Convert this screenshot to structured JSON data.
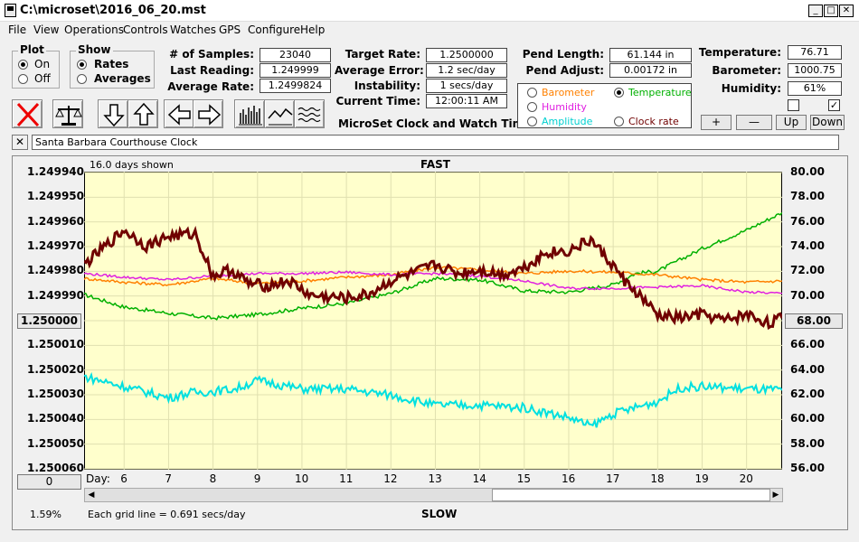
{
  "window": {
    "title": "C:\\microset\\2016_06_20.mst"
  },
  "menu": [
    "File",
    "View",
    "Operations",
    "Controls",
    "Watches",
    "GPS",
    "Configure",
    "Help"
  ],
  "plot": {
    "title": "Plot",
    "on": "On",
    "off": "Off"
  },
  "show": {
    "title": "Show",
    "rates": "Rates",
    "averages": "Averages"
  },
  "stats": {
    "samples_label": "# of Samples:",
    "samples": "23040",
    "last_label": "Last Reading:",
    "last": "1.249999",
    "avg_label": "Average Rate:",
    "avg": "1.2499824",
    "target_label": "Target Rate:",
    "target": "1.2500000",
    "averr_label": "Average Error:",
    "averr": "1.2 sec/day",
    "instab_label": "Instability:",
    "instab": "1 secs/day",
    "time_label": "Current Time:",
    "time": "12:00:11 AM",
    "pendlen_label": "Pend Length:",
    "pendlen": "61.144 in",
    "pendadj_label": "Pend Adjust:",
    "pendadj": "0.00172 in",
    "temp_label": "Temperature:",
    "temp": "76.71",
    "baro_label": "Barometer:",
    "baro": "1000.75",
    "hum_label": "Humidity:",
    "hum": "61%"
  },
  "subtitle": "MicroSet Clock and Watch Timer",
  "legend": {
    "barometer": "Barometer",
    "temperature": "Temperature",
    "humidity": "Humidity",
    "amplitude": "Amplitude",
    "clockrate": "Clock rate"
  },
  "smallbuttons": {
    "plus": "+",
    "minus": "—",
    "up": "Up",
    "down": "Down"
  },
  "clockname": "Santa Barbara Courthouse Clock",
  "colors": {
    "panel_bg": "#ffffcc",
    "barometer": "#ff8000",
    "temperature": "#00b000",
    "humidity": "#e020e0",
    "amplitude": "#00e0e0",
    "clockrate": "#700000"
  },
  "chart_data": {
    "type": "line",
    "title": "FAST",
    "bottom_label": "SLOW",
    "days_shown": "16.0 days shown",
    "grid_note": "Each grid line = 0.691 secs/day",
    "percent": "1.59%",
    "x_label": "Day:",
    "x_ticks": [
      "6",
      "7",
      "8",
      "9",
      "10",
      "11",
      "12",
      "13",
      "14",
      "15",
      "16",
      "17",
      "18",
      "19",
      "20"
    ],
    "y_left_ticks": [
      "1.249940",
      "1.249950",
      "1.249960",
      "1.249970",
      "1.249980",
      "1.249990",
      "1.250000",
      "1.250010",
      "1.250020",
      "1.250030",
      "1.250040",
      "1.250050",
      "1.250060"
    ],
    "y_right_ticks": [
      "80.00",
      "78.00",
      "76.00",
      "74.00",
      "72.00",
      "70.00",
      "68.00",
      "66.00",
      "64.00",
      "62.00",
      "60.00",
      "58.00",
      "56.00"
    ],
    "left_center_button": "1.250000",
    "right_center_button": "68.00",
    "left_bottom_button": "0",
    "x_range": [
      5.1,
      20.8
    ],
    "y_right_range": [
      56,
      80
    ],
    "series": [
      {
        "name": "Temperature",
        "x": [
          5.1,
          6,
          7,
          8,
          9,
          10,
          11,
          12,
          13,
          14,
          15,
          16,
          17,
          17.5,
          18,
          19,
          20,
          20.8
        ],
        "y": [
          70.1,
          69.1,
          68.6,
          68.2,
          68.5,
          69.0,
          69.4,
          70.2,
          71.4,
          71.3,
          70.4,
          70.3,
          70.9,
          71.8,
          72.0,
          73.8,
          75.3,
          76.7
        ]
      },
      {
        "name": "Barometer",
        "x": [
          5.1,
          6,
          7,
          8,
          9,
          10,
          11,
          12,
          13,
          14,
          15,
          16,
          17,
          18,
          19,
          20,
          20.8
        ],
        "y": [
          71.4,
          71.1,
          70.9,
          71.4,
          71.0,
          71.2,
          71.5,
          71.7,
          72.3,
          72.1,
          71.8,
          72.0,
          71.9,
          71.7,
          71.3,
          71.1,
          71.2
        ]
      },
      {
        "name": "Humidity",
        "x": [
          5.1,
          6,
          7,
          8,
          9,
          10,
          11,
          12,
          13,
          14,
          15,
          16,
          17,
          18,
          19,
          20,
          20.8
        ],
        "y": [
          71.8,
          71.5,
          71.3,
          71.6,
          71.8,
          71.8,
          71.9,
          71.7,
          71.8,
          71.6,
          71.2,
          70.6,
          70.6,
          70.7,
          70.8,
          70.3,
          70.2
        ]
      },
      {
        "name": "Amplitude",
        "x": [
          5.1,
          6,
          7,
          7.5,
          8,
          8.5,
          9,
          10,
          11,
          12,
          13,
          14,
          15,
          16,
          16.5,
          17,
          18,
          18.5,
          19,
          20,
          20.8
        ],
        "y": [
          63.5,
          62.7,
          61.8,
          62.2,
          62.3,
          62.5,
          63.2,
          62.5,
          62.5,
          62.0,
          61.2,
          61.2,
          61.0,
          60.2,
          59.5,
          60.5,
          61.5,
          62.6,
          62.7,
          62.5,
          62.4
        ]
      },
      {
        "name": "Clock rate",
        "x": [
          5.1,
          6,
          6.5,
          7,
          7.6,
          8,
          8.4,
          8.8,
          9.2,
          9.7,
          10.2,
          11,
          11.5,
          12,
          12.5,
          13,
          13.5,
          14,
          14.5,
          15,
          15.5,
          16,
          16.5,
          17,
          17.3,
          17.6,
          18,
          18.5,
          19,
          19.5,
          20,
          20.5,
          20.8
        ],
        "y": [
          72.5,
          75.3,
          74.0,
          74.8,
          75.0,
          71.6,
          72.1,
          71.0,
          70.8,
          71.2,
          70.0,
          69.8,
          70.1,
          71.2,
          71.8,
          72.5,
          71.8,
          72.1,
          71.7,
          72.3,
          73.5,
          73.6,
          74.5,
          72.4,
          71.0,
          70.0,
          68.4,
          68.2,
          68.5,
          68.0,
          68.5,
          67.8,
          68.2
        ]
      }
    ]
  }
}
